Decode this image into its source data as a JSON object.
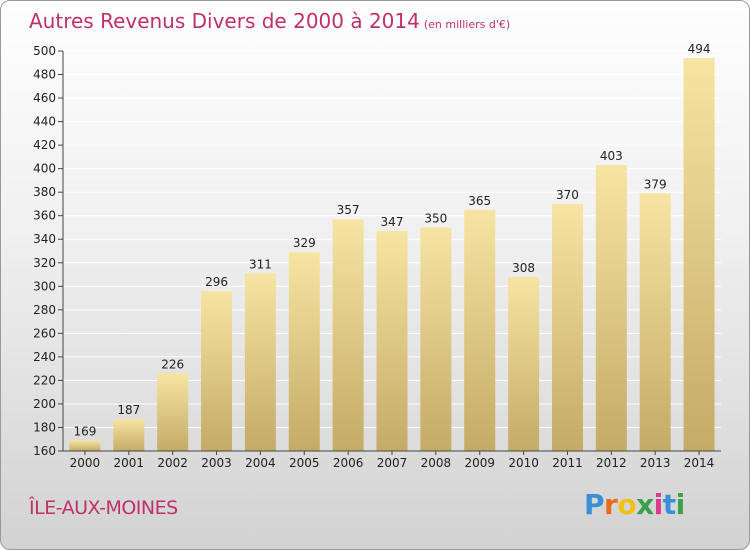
{
  "header": {
    "title": "Autres Revenus Divers de 2000 à 2014",
    "unit": "(en milliers d'€)"
  },
  "footer": {
    "commune": "ÎLE-AUX-MOINES",
    "logo": {
      "letters": [
        "P",
        "r",
        "o",
        "x",
        "i",
        "t",
        "i"
      ],
      "colors": [
        "#3a8fd6",
        "#e86a1c",
        "#f2c118",
        "#3aa14a",
        "#d93a8a",
        "#3a8fd6",
        "#3aa14a"
      ]
    }
  },
  "colors": {
    "bar_light": "#f7e4a3",
    "bar_dark": "#c4ab66",
    "grid": "#ffffff",
    "accent": "#c0306a"
  },
  "chart_data": {
    "type": "bar",
    "title": "Autres Revenus Divers de 2000 à 2014",
    "unit": "(en milliers d'€)",
    "categories": [
      "2000",
      "2001",
      "2002",
      "2003",
      "2004",
      "2005",
      "2006",
      "2007",
      "2008",
      "2009",
      "2010",
      "2011",
      "2012",
      "2013",
      "2014"
    ],
    "values": [
      169,
      187,
      226,
      296,
      311,
      329,
      357,
      347,
      350,
      365,
      308,
      370,
      403,
      379,
      494
    ],
    "ylim": [
      160,
      500
    ],
    "yticks": [
      160,
      180,
      200,
      220,
      240,
      260,
      280,
      300,
      320,
      340,
      360,
      380,
      400,
      420,
      440,
      460,
      480,
      500
    ],
    "grid": true,
    "legend": "none"
  }
}
